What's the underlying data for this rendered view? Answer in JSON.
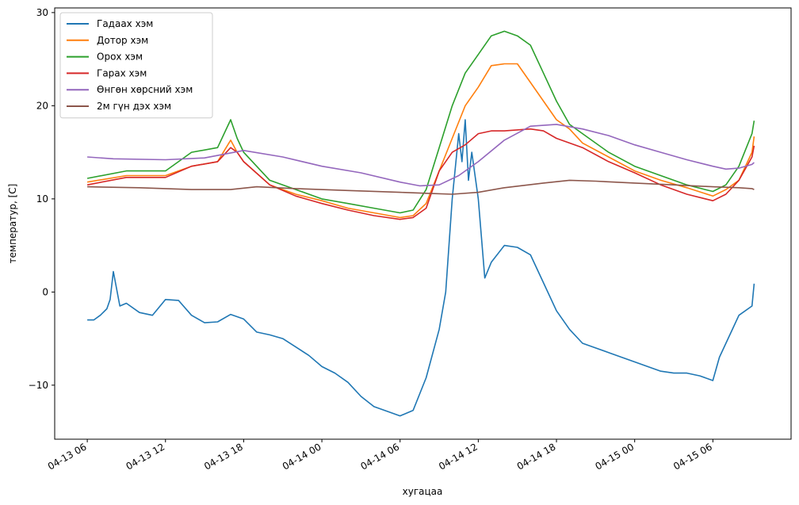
{
  "chart_data": {
    "type": "line",
    "title": "",
    "xlabel": "хугацаа",
    "ylabel": "температур, [C]",
    "x_axis": {
      "type": "datetime",
      "min": "2024-04-13 03:30",
      "max": "2024-04-15 12:00",
      "ticks": [
        {
          "t": "2024-04-13 06:00",
          "label": "04-13 06"
        },
        {
          "t": "2024-04-13 12:00",
          "label": "04-13 12"
        },
        {
          "t": "2024-04-13 18:00",
          "label": "04-13 18"
        },
        {
          "t": "2024-04-14 00:00",
          "label": "04-14 00"
        },
        {
          "t": "2024-04-14 06:00",
          "label": "04-14 06"
        },
        {
          "t": "2024-04-14 12:00",
          "label": "04-14 12"
        },
        {
          "t": "2024-04-14 18:00",
          "label": "04-14 18"
        },
        {
          "t": "2024-04-15 00:00",
          "label": "04-15 00"
        },
        {
          "t": "2024-04-15 06:00",
          "label": "04-15 06"
        }
      ]
    },
    "ylim": [
      -15.8,
      30.5
    ],
    "yticks": [
      -10,
      0,
      10,
      20,
      30
    ],
    "grid": false,
    "legend_position": "upper-left",
    "series": [
      {
        "name": "Гадаах хэм",
        "color": "#1f77b4",
        "x": [
          "2024-04-13 06:00",
          "2024-04-13 06:30",
          "2024-04-13 07:00",
          "2024-04-13 07:30",
          "2024-04-13 07:45",
          "2024-04-13 08:00",
          "2024-04-13 08:30",
          "2024-04-13 09:00",
          "2024-04-13 10:00",
          "2024-04-13 11:00",
          "2024-04-13 12:00",
          "2024-04-13 13:00",
          "2024-04-13 14:00",
          "2024-04-13 15:00",
          "2024-04-13 16:00",
          "2024-04-13 17:00",
          "2024-04-13 18:00",
          "2024-04-13 19:00",
          "2024-04-13 20:00",
          "2024-04-13 21:00",
          "2024-04-13 22:00",
          "2024-04-13 23:00",
          "2024-04-14 00:00",
          "2024-04-14 01:00",
          "2024-04-14 02:00",
          "2024-04-14 03:00",
          "2024-04-14 04:00",
          "2024-04-14 05:00",
          "2024-04-14 06:00",
          "2024-04-14 07:00",
          "2024-04-14 08:00",
          "2024-04-14 09:00",
          "2024-04-14 09:30",
          "2024-04-14 10:00",
          "2024-04-14 10:30",
          "2024-04-14 10:45",
          "2024-04-14 11:00",
          "2024-04-14 11:15",
          "2024-04-14 11:30",
          "2024-04-14 12:00",
          "2024-04-14 12:30",
          "2024-04-14 13:00",
          "2024-04-14 14:00",
          "2024-04-14 15:00",
          "2024-04-14 16:00",
          "2024-04-14 17:00",
          "2024-04-14 18:00",
          "2024-04-14 19:00",
          "2024-04-14 20:00",
          "2024-04-14 21:00",
          "2024-04-14 22:00",
          "2024-04-14 23:00",
          "2024-04-15 00:00",
          "2024-04-15 01:00",
          "2024-04-15 02:00",
          "2024-04-15 03:00",
          "2024-04-15 04:00",
          "2024-04-15 05:00",
          "2024-04-15 06:00",
          "2024-04-15 06:30",
          "2024-04-15 07:00",
          "2024-04-15 07:30",
          "2024-04-15 08:00",
          "2024-04-15 09:00",
          "2024-04-15 09:10"
        ],
        "y": [
          -3.0,
          -3.0,
          -2.5,
          -1.8,
          -0.8,
          2.2,
          -1.5,
          -1.2,
          -2.2,
          -2.5,
          -0.8,
          -0.9,
          -2.5,
          -3.3,
          -3.2,
          -2.4,
          -2.9,
          -4.3,
          -4.6,
          -5.0,
          -5.9,
          -6.8,
          -8.0,
          -8.7,
          -9.7,
          -11.2,
          -12.3,
          -12.8,
          -13.3,
          -12.7,
          -9.2,
          -4.0,
          0.0,
          10.0,
          17.0,
          14.0,
          18.5,
          12.0,
          15.0,
          10.0,
          1.5,
          3.2,
          5.0,
          4.8,
          4.0,
          1.0,
          -2.0,
          -4.0,
          -5.5,
          -6.0,
          -6.5,
          -7.0,
          -7.5,
          -8.0,
          -8.5,
          -8.7,
          -8.7,
          -9.0,
          -9.5,
          -7.0,
          -5.5,
          -4.0,
          -2.5,
          -1.5,
          0.9
        ]
      },
      {
        "name": "Дотор хэм",
        "color": "#ff7f0e",
        "x": [
          "2024-04-13 06:00",
          "2024-04-13 09:00",
          "2024-04-13 12:00",
          "2024-04-13 14:00",
          "2024-04-13 16:00",
          "2024-04-13 17:00",
          "2024-04-13 17:30",
          "2024-04-13 18:00",
          "2024-04-13 20:00",
          "2024-04-13 22:00",
          "2024-04-14 00:00",
          "2024-04-14 02:00",
          "2024-04-14 04:00",
          "2024-04-14 06:00",
          "2024-04-14 07:00",
          "2024-04-14 08:00",
          "2024-04-14 09:00",
          "2024-04-14 10:00",
          "2024-04-14 11:00",
          "2024-04-14 12:00",
          "2024-04-14 13:00",
          "2024-04-14 14:00",
          "2024-04-14 15:00",
          "2024-04-14 16:00",
          "2024-04-14 17:00",
          "2024-04-14 18:00",
          "2024-04-14 19:00",
          "2024-04-14 20:00",
          "2024-04-14 22:00",
          "2024-04-15 00:00",
          "2024-04-15 02:00",
          "2024-04-15 04:00",
          "2024-04-15 06:00",
          "2024-04-15 07:00",
          "2024-04-15 08:00",
          "2024-04-15 09:00",
          "2024-04-15 09:10"
        ],
        "y": [
          11.8,
          12.5,
          12.5,
          13.5,
          14.0,
          16.3,
          15.0,
          14.0,
          11.5,
          10.5,
          9.8,
          9.0,
          8.5,
          8.0,
          8.2,
          9.5,
          13.0,
          16.5,
          20.0,
          22.0,
          24.3,
          24.5,
          24.5,
          22.5,
          20.5,
          18.5,
          17.5,
          16.0,
          14.5,
          13.0,
          12.0,
          11.2,
          10.3,
          11.0,
          12.0,
          15.0,
          16.7
        ]
      },
      {
        "name": "Орох хэм",
        "color": "#2ca02c",
        "x": [
          "2024-04-13 06:00",
          "2024-04-13 09:00",
          "2024-04-13 12:00",
          "2024-04-13 14:00",
          "2024-04-13 16:00",
          "2024-04-13 17:00",
          "2024-04-13 17:30",
          "2024-04-13 18:00",
          "2024-04-13 20:00",
          "2024-04-13 22:00",
          "2024-04-14 00:00",
          "2024-04-14 02:00",
          "2024-04-14 04:00",
          "2024-04-14 06:00",
          "2024-04-14 07:00",
          "2024-04-14 08:00",
          "2024-04-14 09:00",
          "2024-04-14 10:00",
          "2024-04-14 11:00",
          "2024-04-14 12:00",
          "2024-04-14 13:00",
          "2024-04-14 14:00",
          "2024-04-14 15:00",
          "2024-04-14 16:00",
          "2024-04-14 17:00",
          "2024-04-14 18:00",
          "2024-04-14 19:00",
          "2024-04-14 20:00",
          "2024-04-14 22:00",
          "2024-04-15 00:00",
          "2024-04-15 02:00",
          "2024-04-15 04:00",
          "2024-04-15 06:00",
          "2024-04-15 07:00",
          "2024-04-15 08:00",
          "2024-04-15 09:00",
          "2024-04-15 09:10"
        ],
        "y": [
          12.2,
          13.0,
          13.0,
          15.0,
          15.5,
          18.5,
          16.5,
          15.0,
          12.0,
          11.0,
          10.0,
          9.5,
          9.0,
          8.5,
          8.8,
          11.0,
          15.5,
          20.0,
          23.5,
          25.5,
          27.5,
          28.0,
          27.5,
          26.5,
          23.5,
          20.5,
          18.0,
          17.0,
          15.0,
          13.5,
          12.5,
          11.5,
          10.8,
          11.5,
          13.5,
          17.0,
          18.4
        ]
      },
      {
        "name": "Гарах хэм",
        "color": "#d62728",
        "x": [
          "2024-04-13 06:00",
          "2024-04-13 09:00",
          "2024-04-13 12:00",
          "2024-04-13 14:00",
          "2024-04-13 16:00",
          "2024-04-13 17:00",
          "2024-04-13 17:30",
          "2024-04-13 18:00",
          "2024-04-13 20:00",
          "2024-04-13 22:00",
          "2024-04-14 00:00",
          "2024-04-14 02:00",
          "2024-04-14 04:00",
          "2024-04-14 06:00",
          "2024-04-14 07:00",
          "2024-04-14 08:00",
          "2024-04-14 09:00",
          "2024-04-14 10:00",
          "2024-04-14 11:00",
          "2024-04-14 12:00",
          "2024-04-14 13:00",
          "2024-04-14 14:00",
          "2024-04-14 16:00",
          "2024-04-14 17:00",
          "2024-04-14 18:00",
          "2024-04-14 19:00",
          "2024-04-14 20:00",
          "2024-04-14 22:00",
          "2024-04-15 00:00",
          "2024-04-15 02:00",
          "2024-04-15 04:00",
          "2024-04-15 06:00",
          "2024-04-15 07:00",
          "2024-04-15 08:00",
          "2024-04-15 09:00",
          "2024-04-15 09:10"
        ],
        "y": [
          11.5,
          12.3,
          12.3,
          13.5,
          14.0,
          15.5,
          15.0,
          14.0,
          11.5,
          10.3,
          9.5,
          8.8,
          8.2,
          7.8,
          8.0,
          9.0,
          13.0,
          15.0,
          15.8,
          17.0,
          17.3,
          17.3,
          17.5,
          17.3,
          16.5,
          16.0,
          15.5,
          14.0,
          12.8,
          11.5,
          10.5,
          9.8,
          10.5,
          12.0,
          14.5,
          15.7
        ]
      },
      {
        "name": "Өнгөн хөрсний хэм",
        "color": "#9467bd",
        "x": [
          "2024-04-13 06:00",
          "2024-04-13 08:00",
          "2024-04-13 12:00",
          "2024-04-13 15:00",
          "2024-04-13 18:00",
          "2024-04-13 21:00",
          "2024-04-14 00:00",
          "2024-04-14 03:00",
          "2024-04-14 06:00",
          "2024-04-14 07:30",
          "2024-04-14 09:00",
          "2024-04-14 10:30",
          "2024-04-14 12:00",
          "2024-04-14 14:00",
          "2024-04-14 16:00",
          "2024-04-14 18:00",
          "2024-04-14 20:00",
          "2024-04-14 22:00",
          "2024-04-15 00:00",
          "2024-04-15 02:00",
          "2024-04-15 04:00",
          "2024-04-15 06:00",
          "2024-04-15 07:00",
          "2024-04-15 08:00",
          "2024-04-15 09:00",
          "2024-04-15 09:10"
        ],
        "y": [
          14.5,
          14.3,
          14.2,
          14.4,
          15.2,
          14.5,
          13.5,
          12.8,
          11.8,
          11.4,
          11.5,
          12.5,
          14.0,
          16.3,
          17.8,
          18.0,
          17.5,
          16.8,
          15.8,
          15.0,
          14.2,
          13.5,
          13.2,
          13.3,
          13.7,
          13.9
        ]
      },
      {
        "name": "2м гүн дэх хэм",
        "color": "#8c564b",
        "x": [
          "2024-04-13 06:00",
          "2024-04-13 10:00",
          "2024-04-13 14:00",
          "2024-04-13 17:00",
          "2024-04-13 19:00",
          "2024-04-13 22:00",
          "2024-04-14 02:00",
          "2024-04-14 06:00",
          "2024-04-14 08:00",
          "2024-04-14 10:00",
          "2024-04-14 12:00",
          "2024-04-14 14:00",
          "2024-04-14 17:00",
          "2024-04-14 19:00",
          "2024-04-14 21:00",
          "2024-04-15 00:00",
          "2024-04-15 03:00",
          "2024-04-15 06:00",
          "2024-04-15 08:00",
          "2024-04-15 09:00",
          "2024-04-15 09:10"
        ],
        "y": [
          11.3,
          11.2,
          11.0,
          11.0,
          11.3,
          11.1,
          10.9,
          10.7,
          10.6,
          10.5,
          10.7,
          11.2,
          11.7,
          12.0,
          11.9,
          11.7,
          11.5,
          11.3,
          11.2,
          11.1,
          11.0
        ]
      }
    ]
  }
}
